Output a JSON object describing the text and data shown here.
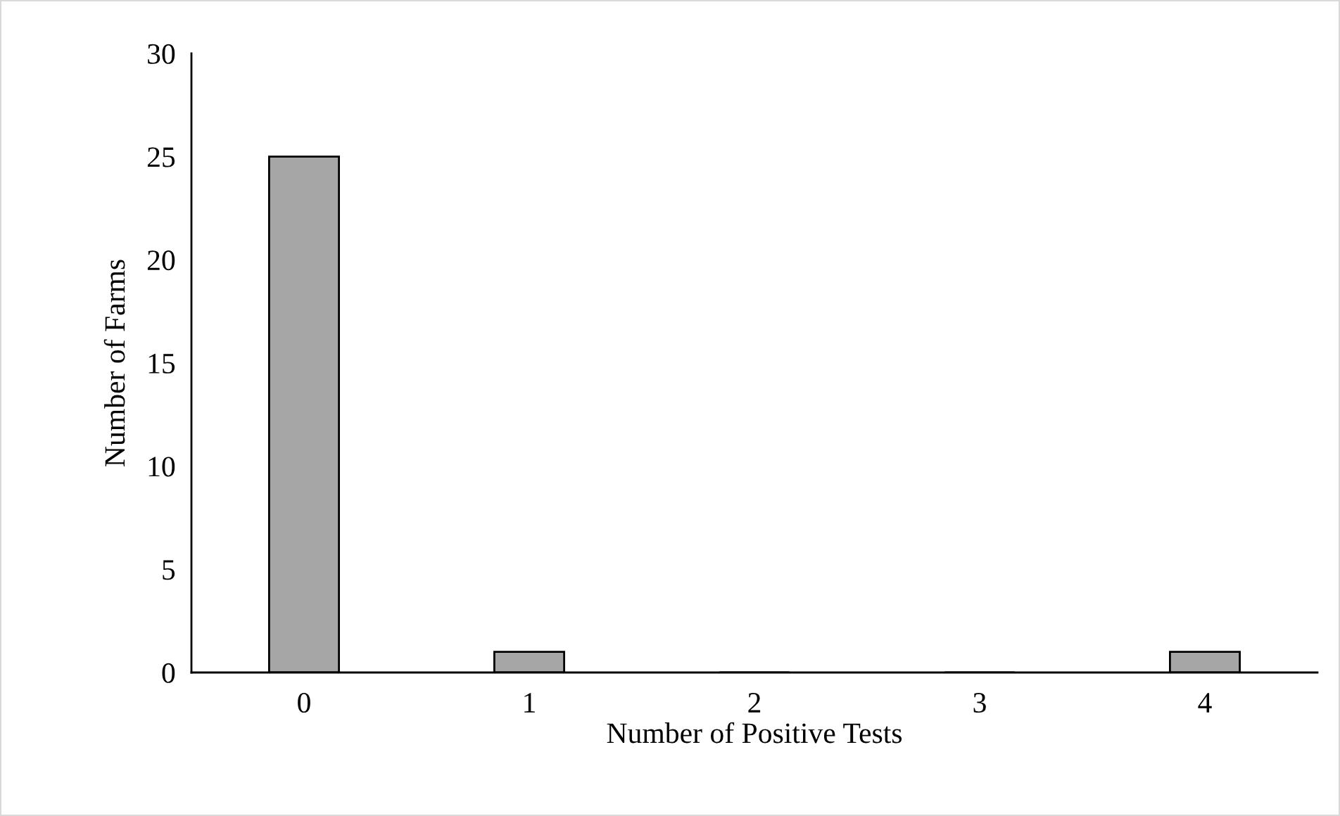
{
  "chart_data": {
    "type": "bar",
    "xlabel": "Number of Positive Tests",
    "ylabel": "Number of Farms",
    "categories": [
      "0",
      "1",
      "2",
      "3",
      "4"
    ],
    "series": [
      {
        "color": "#a6a6a6",
        "values": [
          25,
          1,
          0,
          0,
          1
        ]
      }
    ],
    "ylim": [
      0,
      30
    ],
    "yticks": [
      0,
      5,
      10,
      15,
      20,
      25,
      30
    ],
    "grid": false,
    "legend": false
  }
}
